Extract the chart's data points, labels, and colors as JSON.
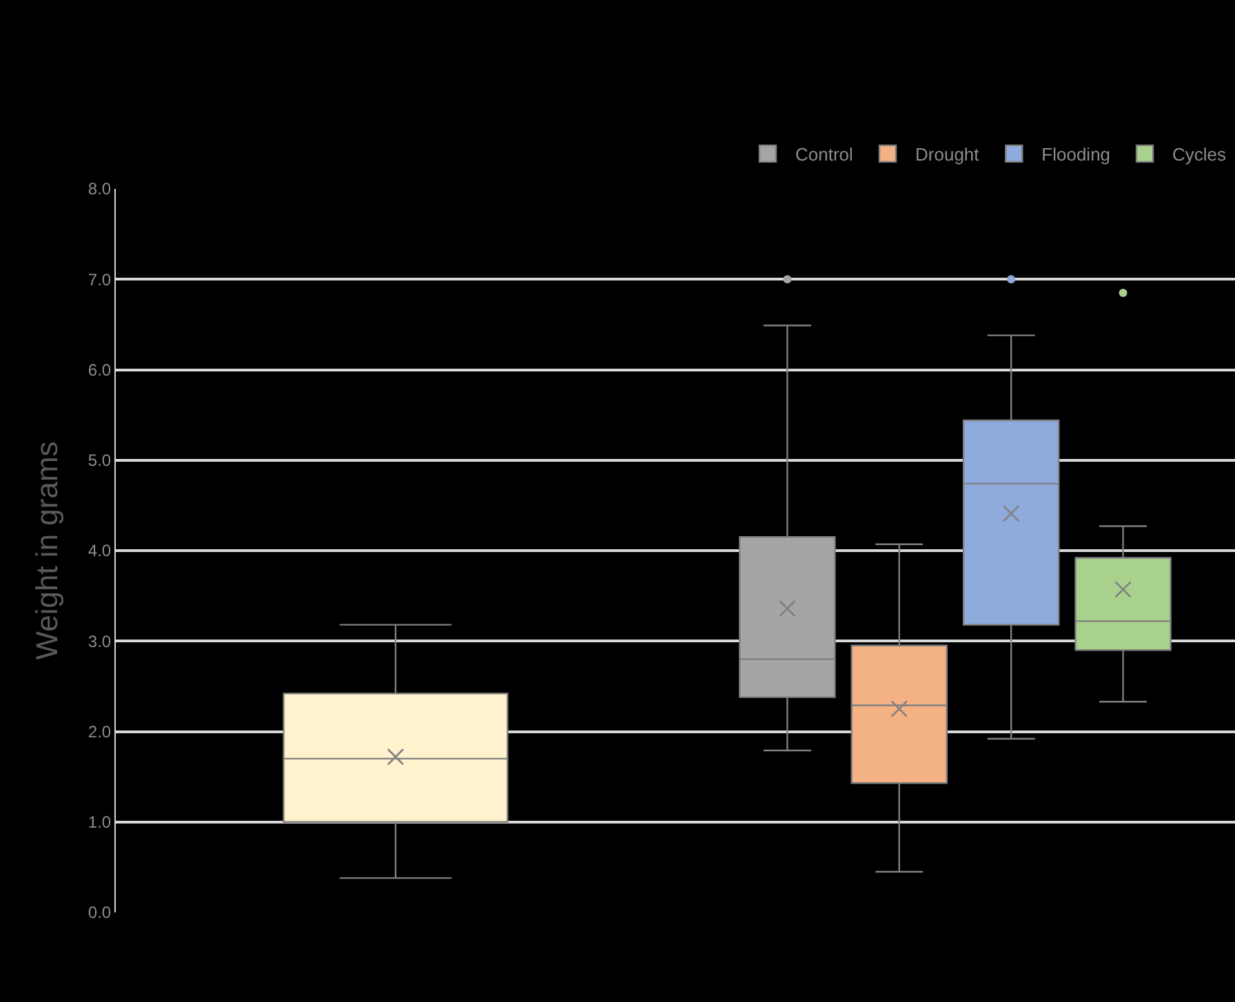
{
  "chart_data": {
    "type": "box",
    "ylabel": "Weight in grams",
    "categories": [
      null,
      null
    ],
    "ylim": [
      0,
      8
    ],
    "yticks": [
      {
        "value": 0,
        "label": "0.0"
      },
      {
        "value": 1,
        "label": "1.0"
      },
      {
        "value": 2,
        "label": "2.0"
      },
      {
        "value": 3,
        "label": "3.0"
      },
      {
        "value": 4,
        "label": "4.0"
      },
      {
        "value": 5,
        "label": "5.0"
      },
      {
        "value": 6,
        "label": "6.0"
      },
      {
        "value": 7,
        "label": "7.0"
      },
      {
        "value": 8,
        "label": "8.0"
      }
    ],
    "grid": "y",
    "legend": "top right",
    "tick_labels": "y",
    "series": [
      {
        "color": "#fff2cc",
        "boxes": [
          {
            "low": 0.38,
            "q1": 1.0,
            "median": 1.7,
            "q3": 2.42,
            "high": 3.18,
            "mean": 1.72
          },
          null
        ]
      },
      {
        "name": "Control",
        "color": "#a5a5a5",
        "boxes": [
          null,
          {
            "low": 1.79,
            "q1": 2.38,
            "median": 2.8,
            "q3": 4.15,
            "high": 6.49,
            "mean": 3.36,
            "outliers": [
              7.0
            ]
          }
        ]
      },
      {
        "name": "Drought",
        "color": "#f4b183",
        "boxes": [
          null,
          {
            "low": 0.45,
            "q1": 1.43,
            "median": 2.29,
            "q3": 2.95,
            "high": 4.07,
            "mean": 2.25
          }
        ]
      },
      {
        "name": "Flooding",
        "color": "#8faadc",
        "boxes": [
          null,
          {
            "low": 1.92,
            "q1": 3.18,
            "median": 4.74,
            "q3": 5.44,
            "high": 6.38,
            "mean": 4.41,
            "outliers": [
              7.0
            ]
          }
        ]
      },
      {
        "name": "Cycles",
        "color": "#a9d18e",
        "boxes": [
          null,
          {
            "low": 2.33,
            "q1": 2.9,
            "median": 3.22,
            "q3": 3.92,
            "high": 4.27,
            "mean": 3.57,
            "outliers": [
              6.85
            ]
          }
        ]
      }
    ]
  }
}
